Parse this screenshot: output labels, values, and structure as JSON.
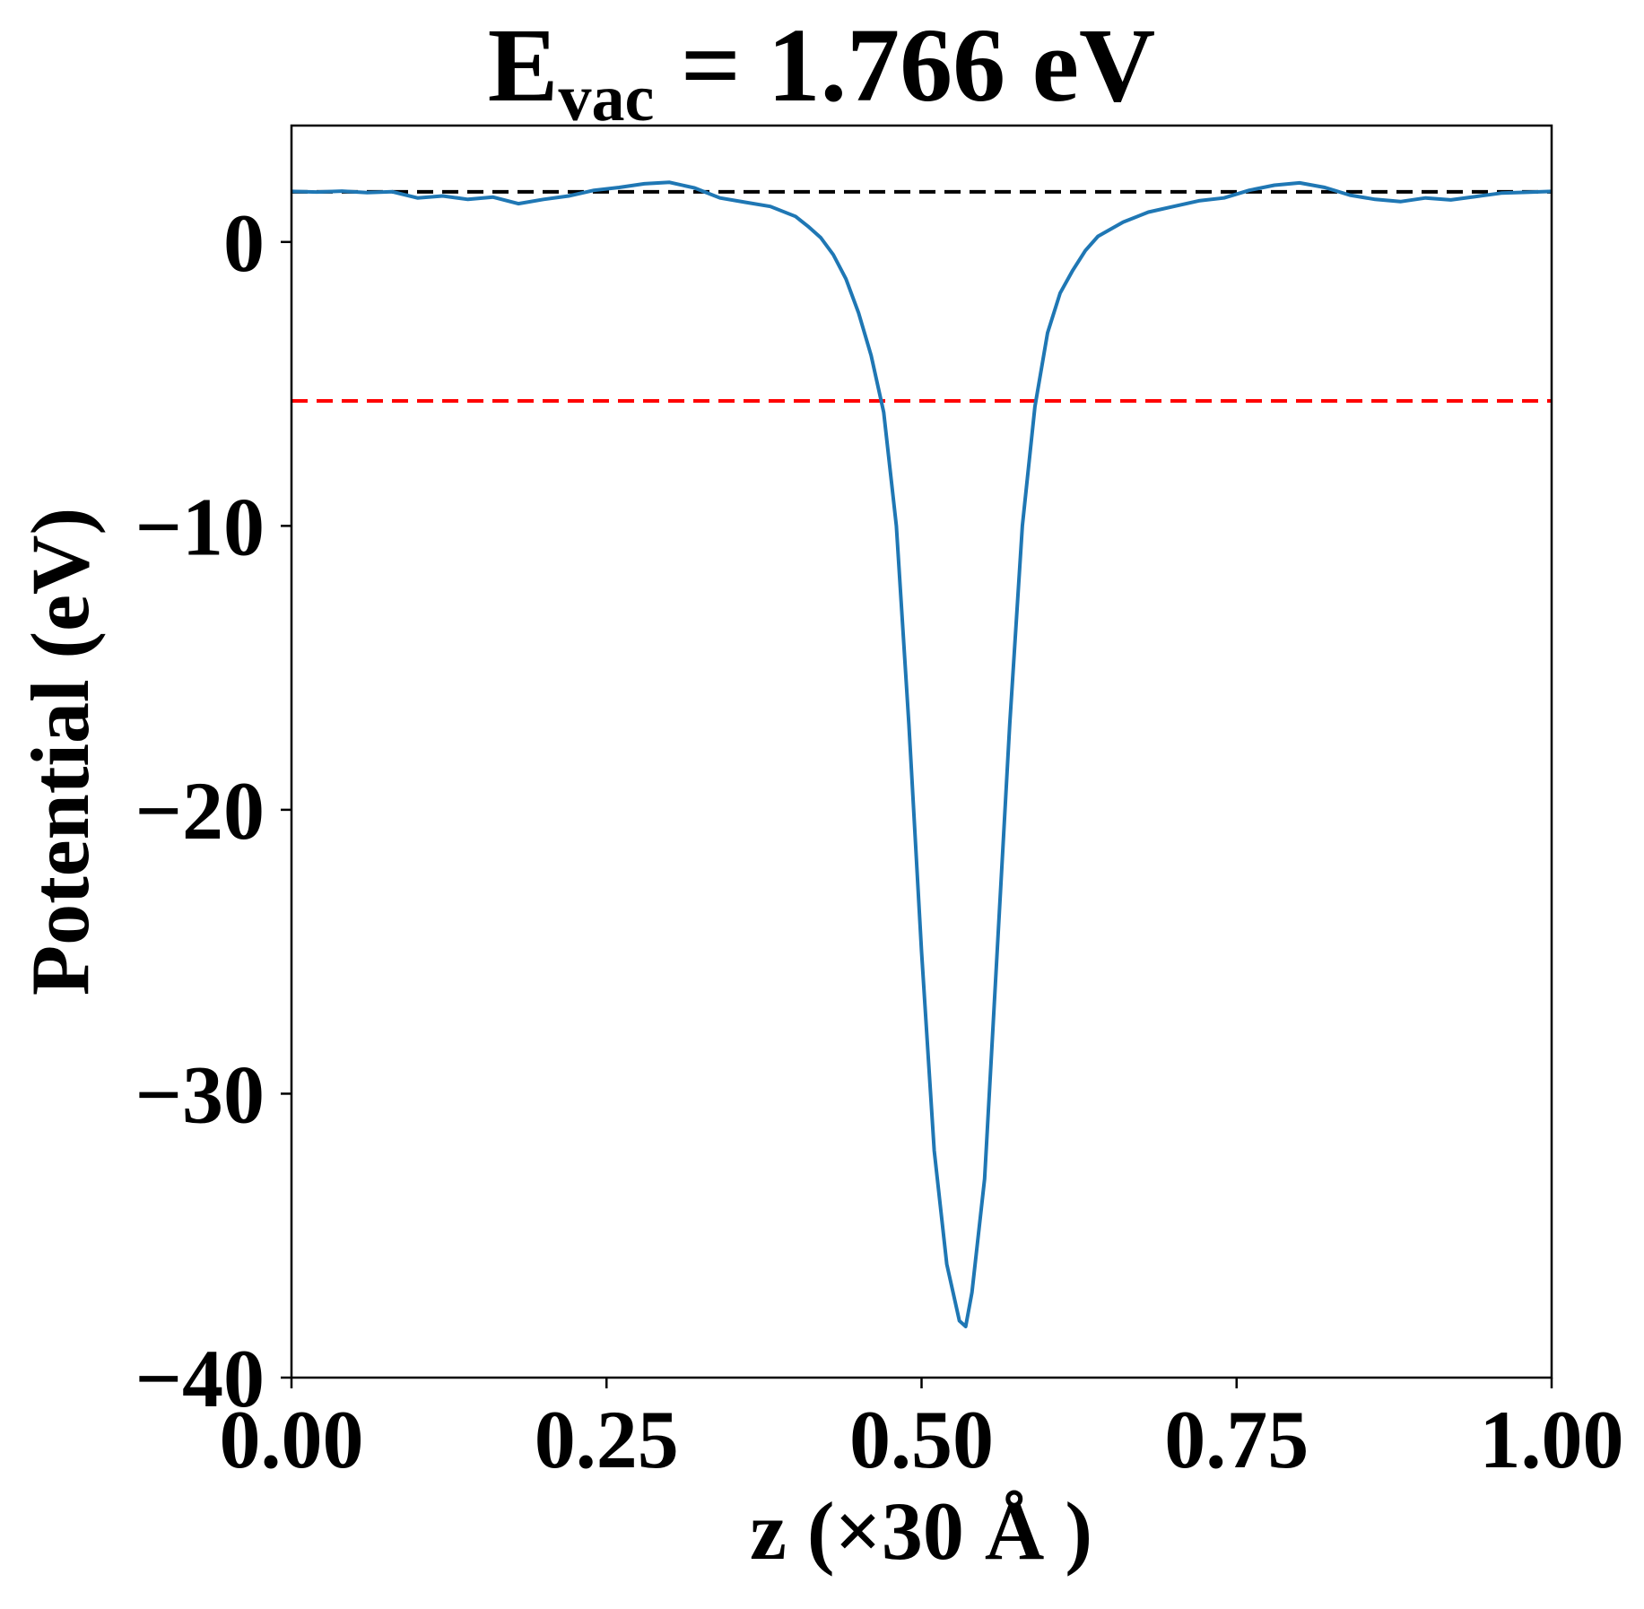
{
  "chart_data": {
    "type": "line",
    "title_main": "E",
    "title_sub": "vac",
    "title_rest": " = 1.766 eV",
    "xlabel": "z (×30 Å )",
    "ylabel": "Potential (eV)",
    "xlim": [
      0.0,
      1.0
    ],
    "ylim": [
      -40.0,
      4.1
    ],
    "x_ticks": [
      0.0,
      0.25,
      0.5,
      0.75,
      1.0
    ],
    "x_tick_labels": [
      "0.00",
      "0.25",
      "0.50",
      "0.75",
      "1.00"
    ],
    "y_ticks": [
      0,
      -10,
      -20,
      -30,
      -40
    ],
    "y_tick_labels": [
      "0",
      "−10",
      "−20",
      "−30",
      "−40"
    ],
    "grid": false,
    "reference_lines": [
      {
        "y": 1.766,
        "color": "#000000",
        "style": "dashed"
      },
      {
        "y": -5.6,
        "color": "#ff0000",
        "style": "dashed"
      }
    ],
    "series": [
      {
        "color": "#1f77b4",
        "points": [
          [
            0.0,
            1.78
          ],
          [
            0.02,
            1.76
          ],
          [
            0.04,
            1.79
          ],
          [
            0.06,
            1.74
          ],
          [
            0.08,
            1.77
          ],
          [
            0.1,
            1.55
          ],
          [
            0.12,
            1.62
          ],
          [
            0.14,
            1.5
          ],
          [
            0.16,
            1.58
          ],
          [
            0.18,
            1.35
          ],
          [
            0.2,
            1.5
          ],
          [
            0.22,
            1.62
          ],
          [
            0.24,
            1.82
          ],
          [
            0.26,
            1.92
          ],
          [
            0.28,
            2.05
          ],
          [
            0.3,
            2.1
          ],
          [
            0.32,
            1.9
          ],
          [
            0.34,
            1.55
          ],
          [
            0.36,
            1.4
          ],
          [
            0.38,
            1.25
          ],
          [
            0.4,
            0.9
          ],
          [
            0.41,
            0.55
          ],
          [
            0.42,
            0.15
          ],
          [
            0.43,
            -0.45
          ],
          [
            0.44,
            -1.3
          ],
          [
            0.45,
            -2.5
          ],
          [
            0.46,
            -4.0
          ],
          [
            0.47,
            -6.0
          ],
          [
            0.48,
            -10.0
          ],
          [
            0.49,
            -17.0
          ],
          [
            0.5,
            -25.0
          ],
          [
            0.51,
            -32.0
          ],
          [
            0.52,
            -36.0
          ],
          [
            0.53,
            -38.0
          ],
          [
            0.535,
            -38.2
          ],
          [
            0.54,
            -37.0
          ],
          [
            0.55,
            -33.0
          ],
          [
            0.56,
            -25.0
          ],
          [
            0.57,
            -17.0
          ],
          [
            0.58,
            -10.0
          ],
          [
            0.59,
            -5.8
          ],
          [
            0.6,
            -3.2
          ],
          [
            0.61,
            -1.8
          ],
          [
            0.62,
            -1.0
          ],
          [
            0.63,
            -0.3
          ],
          [
            0.64,
            0.2
          ],
          [
            0.66,
            0.7
          ],
          [
            0.68,
            1.05
          ],
          [
            0.7,
            1.25
          ],
          [
            0.72,
            1.45
          ],
          [
            0.74,
            1.55
          ],
          [
            0.76,
            1.82
          ],
          [
            0.78,
            2.0
          ],
          [
            0.8,
            2.08
          ],
          [
            0.82,
            1.92
          ],
          [
            0.84,
            1.65
          ],
          [
            0.86,
            1.5
          ],
          [
            0.88,
            1.42
          ],
          [
            0.9,
            1.55
          ],
          [
            0.92,
            1.48
          ],
          [
            0.94,
            1.6
          ],
          [
            0.96,
            1.72
          ],
          [
            0.98,
            1.75
          ],
          [
            1.0,
            1.78
          ]
        ]
      }
    ]
  }
}
